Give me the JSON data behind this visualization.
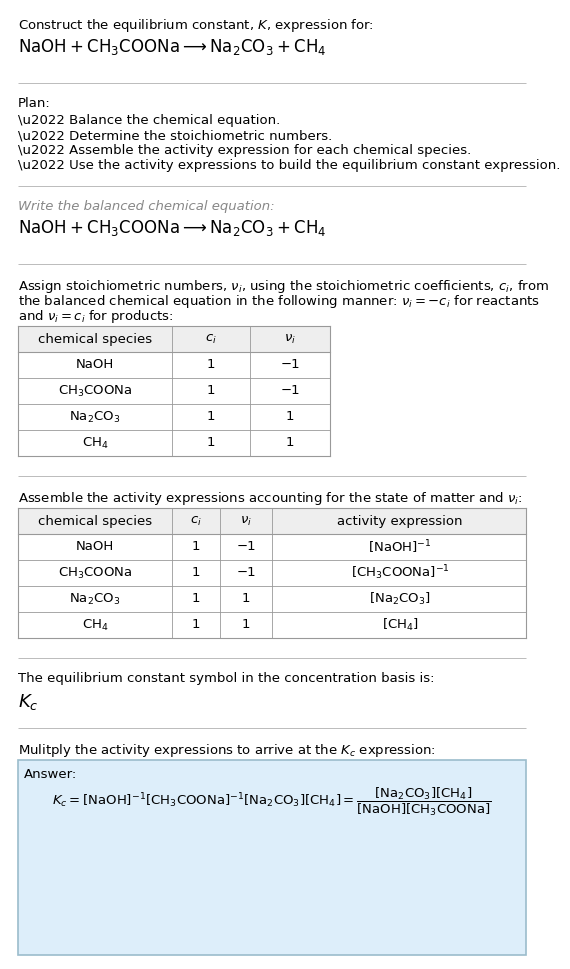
{
  "title_line1": "Construct the equilibrium constant, $K$, expression for:",
  "title_line2": "$\\mathrm{NaOH + CH_3COONa \\longrightarrow Na_2CO_3 + CH_4}$",
  "plan_header": "Plan:",
  "plan_items": [
    "\\u2022 Balance the chemical equation.",
    "\\u2022 Determine the stoichiometric numbers.",
    "\\u2022 Assemble the activity expression for each chemical species.",
    "\\u2022 Use the activity expressions to build the equilibrium constant expression."
  ],
  "balanced_header": "Write the balanced chemical equation:",
  "balanced_eq": "$\\mathrm{NaOH + CH_3COONa \\longrightarrow Na_2CO_3 + CH_4}$",
  "stoich_intro": "Assign stoichiometric numbers, $\\nu_i$, using the stoichiometric coefficients, $c_i$, from the balanced chemical equation in the following manner: $\\nu_i = -c_i$ for reactants and $\\nu_i = c_i$ for products:",
  "table1_headers": [
    "chemical species",
    "$c_i$",
    "$\\nu_i$"
  ],
  "table1_rows": [
    [
      "NaOH",
      "1",
      "−1"
    ],
    [
      "$\\mathrm{CH_3COONa}$",
      "1",
      "−1"
    ],
    [
      "$\\mathrm{Na_2CO_3}$",
      "1",
      "1"
    ],
    [
      "$\\mathrm{CH_4}$",
      "1",
      "1"
    ]
  ],
  "assemble_header": "Assemble the activity expressions accounting for the state of matter and $\\nu_i$:",
  "table2_headers": [
    "chemical species",
    "$c_i$",
    "$\\nu_i$",
    "activity expression"
  ],
  "table2_rows": [
    [
      "NaOH",
      "1",
      "−1",
      "$[\\mathrm{NaOH}]^{-1}$"
    ],
    [
      "$\\mathrm{CH_3COONa}$",
      "1",
      "−1",
      "$[\\mathrm{CH_3COONa}]^{-1}$"
    ],
    [
      "$\\mathrm{Na_2CO_3}$",
      "1",
      "1",
      "$[\\mathrm{Na_2CO_3}]$"
    ],
    [
      "$\\mathrm{CH_4}$",
      "1",
      "1",
      "$[\\mathrm{CH_4}]$"
    ]
  ],
  "kc_header": "The equilibrium constant symbol in the concentration basis is:",
  "kc_symbol": "$K_c$",
  "multiply_header": "Mulitply the activity expressions to arrive at the $K_c$ expression:",
  "answer_label": "Answer:",
  "answer_eq_line": "$K_c = [\\mathrm{NaOH}]^{-1} [\\mathrm{CH_3COONa}]^{-1} [\\mathrm{Na_2CO_3}][\\mathrm{CH_4}] = \\dfrac{[\\mathrm{Na_2CO_3}][\\mathrm{CH_4}]}{[\\mathrm{NaOH}][\\mathrm{CH_3COONa}]}$",
  "bg_color": "#ffffff",
  "answer_bg": "#ddeefa",
  "answer_border": "#9bbccc",
  "sep_color": "#bbbbbb",
  "table_line_color": "#999999"
}
